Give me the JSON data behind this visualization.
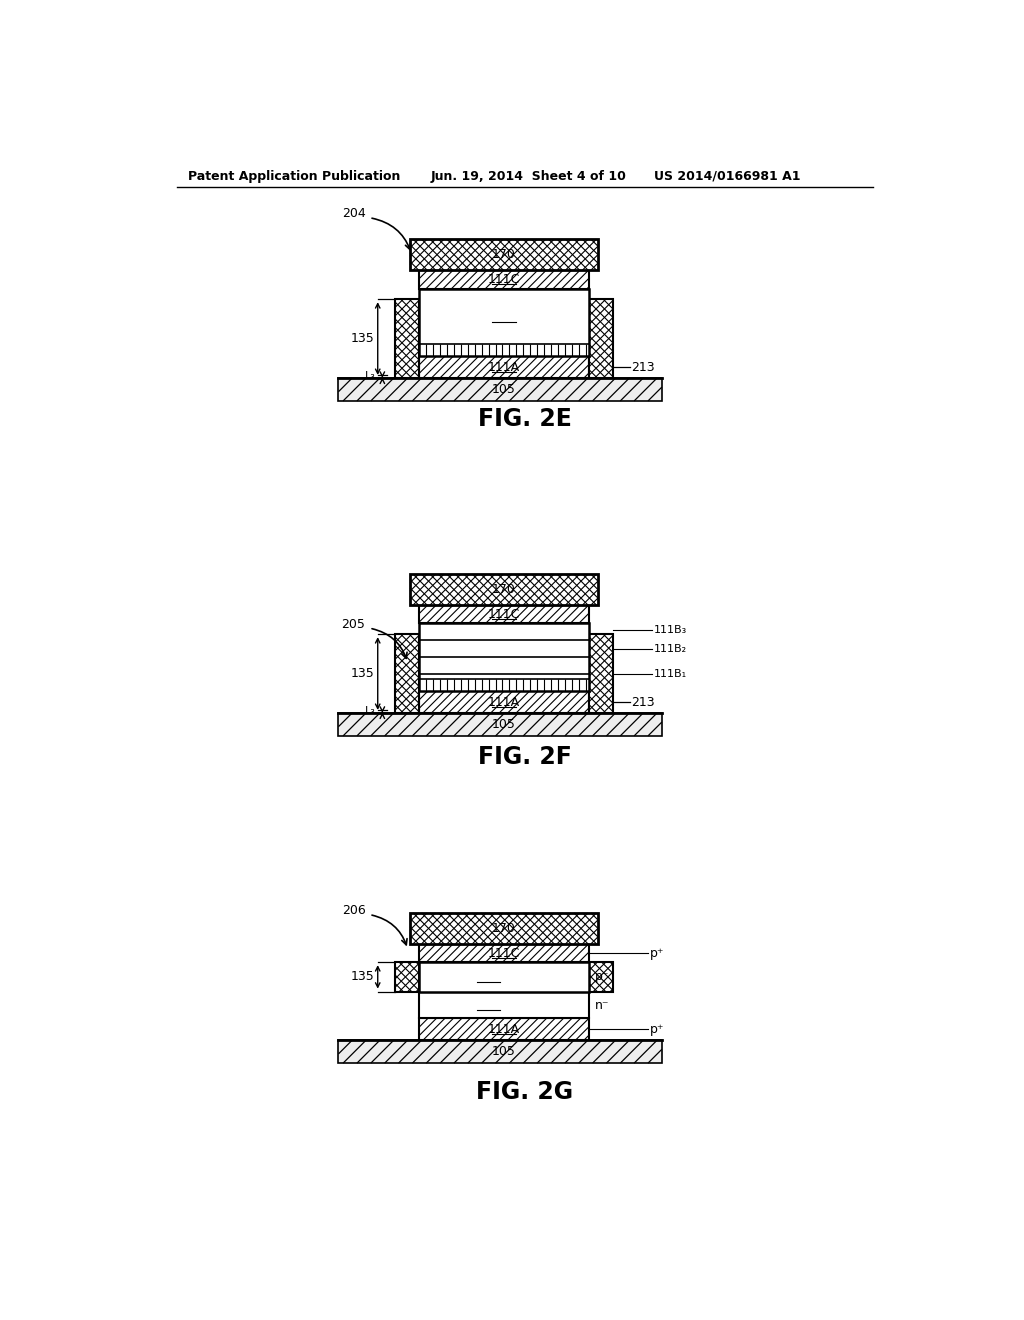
{
  "header_left": "Patent Application Publication",
  "header_mid": "Jun. 19, 2014  Sheet 4 of 10",
  "header_right": "US 2014/0166981 A1",
  "fig_labels": [
    "FIG. 2E",
    "FIG. 2F",
    "FIG. 2G"
  ],
  "fig_ref_nums": [
    "204",
    "205",
    "206"
  ],
  "background": "#ffffff",
  "line_color": "#000000",
  "hatch_color": "#000000"
}
